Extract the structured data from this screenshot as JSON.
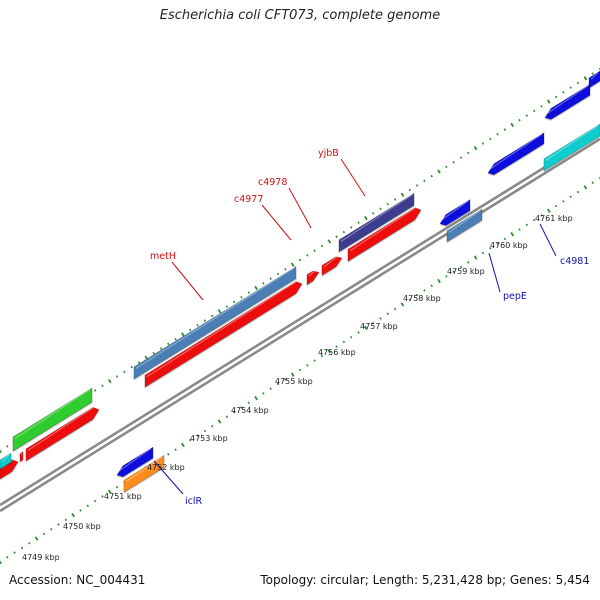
{
  "title": "Escherichia coli CFT073, complete genome",
  "footer": {
    "accession": "Accession: NC_004431",
    "summary": "Topology: circular; Length: 5,231,428 bp; Genes: 5,454"
  },
  "ruler": {
    "ticks": [
      "4749 kbp",
      "4750 kbp",
      "4751 kbp",
      "4752 kbp",
      "4753 kbp",
      "4754 kbp",
      "4755 kbp",
      "4756 kbp",
      "4757 kbp",
      "4758 kbp",
      "4759 kbp",
      "4760 kbp",
      "4761 kbp"
    ]
  },
  "colors": {
    "backbone": "#8a8a8a",
    "dots": "#2e8b2e",
    "label_forward": "#cc1111",
    "label_reverse": "#1111aa",
    "red": "#ee1111",
    "steelblue": "#4a7fb5",
    "green": "#2ecc2e",
    "blue": "#1111dd",
    "orange": "#ff8c1a",
    "cyan": "#11cccc",
    "purple": "#3d3d8f"
  },
  "gene_labels": [
    {
      "name": "metH",
      "strand": "forward"
    },
    {
      "name": "c4977",
      "strand": "forward"
    },
    {
      "name": "c4978",
      "strand": "forward"
    },
    {
      "name": "yjbB",
      "strand": "forward"
    },
    {
      "name": "iclR",
      "strand": "reverse"
    },
    {
      "name": "pepE",
      "strand": "reverse"
    },
    {
      "name": "c4981",
      "strand": "reverse"
    }
  ]
}
